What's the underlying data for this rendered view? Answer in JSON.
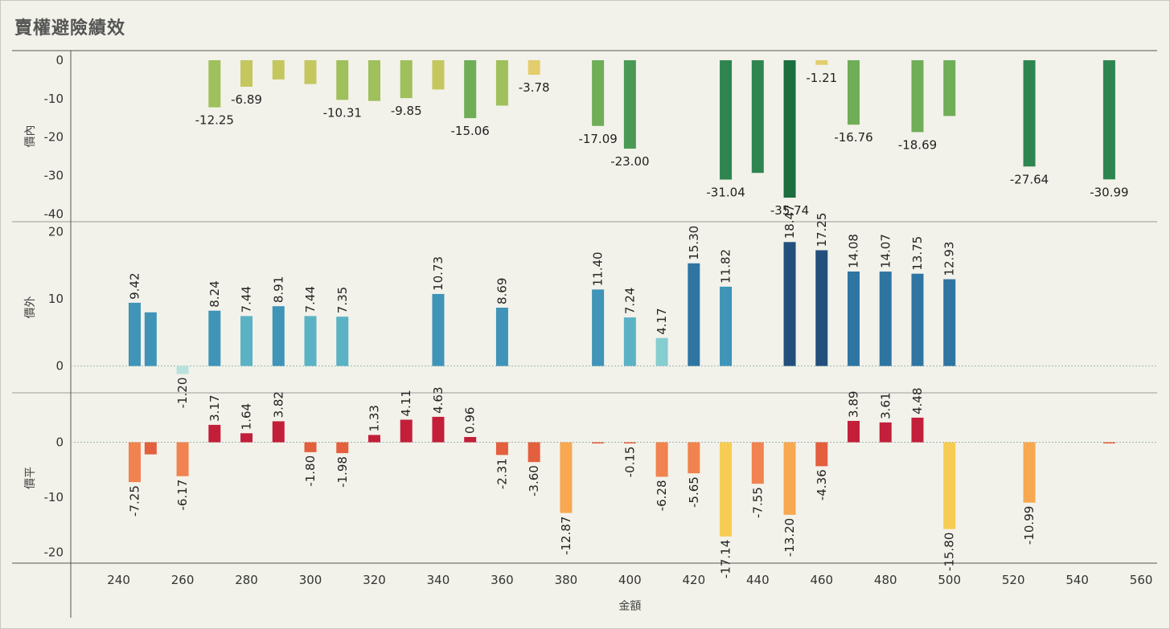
{
  "title": "賣權避險績效",
  "colors": {
    "greens": [
      "#e3cd6c",
      "#c4c75e",
      "#9fc05a",
      "#6fad57",
      "#4a9a55",
      "#2f8550",
      "#1c6e3e"
    ],
    "blues": [
      "#b8e2dd",
      "#86cdd0",
      "#5bb2c5",
      "#3f94b8",
      "#2f75a2",
      "#234f7c"
    ],
    "posred": "#c31f3a",
    "negs": [
      "#f6cc54",
      "#f7a851",
      "#f0834f",
      "#e35f3e"
    ]
  },
  "chart_data": {
    "type": "bar",
    "xlabel": "金額",
    "xlim": [
      225,
      565
    ],
    "xticks": [
      240,
      260,
      280,
      300,
      320,
      340,
      360,
      380,
      400,
      420,
      440,
      460,
      480,
      500,
      520,
      540,
      560
    ],
    "panels": [
      {
        "name": "價內",
        "ylim": [
          -42,
          2.5
        ],
        "yticks": [
          0,
          -10,
          -20,
          -30,
          -40
        ],
        "bars": [
          {
            "x": 270,
            "value": -12.25,
            "label": "-12.25"
          },
          {
            "x": 280,
            "value": -6.89,
            "label": "-6.89"
          },
          {
            "x": 290,
            "value": -5.0,
            "label": ""
          },
          {
            "x": 300,
            "value": -6.2,
            "label": ""
          },
          {
            "x": 310,
            "value": -10.31,
            "label": "-10.31"
          },
          {
            "x": 320,
            "value": -10.6,
            "label": ""
          },
          {
            "x": 330,
            "value": -9.85,
            "label": "-9.85"
          },
          {
            "x": 340,
            "value": -7.6,
            "label": ""
          },
          {
            "x": 350,
            "value": -15.06,
            "label": "-15.06"
          },
          {
            "x": 360,
            "value": -11.8,
            "label": ""
          },
          {
            "x": 370,
            "value": -3.78,
            "label": "-3.78"
          },
          {
            "x": 390,
            "value": -17.09,
            "label": "-17.09"
          },
          {
            "x": 400,
            "value": -23.0,
            "label": "-23.00"
          },
          {
            "x": 430,
            "value": -31.04,
            "label": "-31.04"
          },
          {
            "x": 440,
            "value": -29.3,
            "label": ""
          },
          {
            "x": 450,
            "value": -35.74,
            "label": "-35.74"
          },
          {
            "x": 460,
            "value": -1.21,
            "label": "-1.21"
          },
          {
            "x": 470,
            "value": -16.76,
            "label": "-16.76"
          },
          {
            "x": 490,
            "value": -18.69,
            "label": "-18.69"
          },
          {
            "x": 500,
            "value": -14.5,
            "label": ""
          },
          {
            "x": 525,
            "value": -27.64,
            "label": "-27.64"
          },
          {
            "x": 550,
            "value": -30.99,
            "label": "-30.99"
          }
        ]
      },
      {
        "name": "價外",
        "ylim": [
          -4,
          21.5
        ],
        "yticks": [
          20,
          10,
          0
        ],
        "bars": [
          {
            "x": 245,
            "value": 9.42,
            "label": "9.42"
          },
          {
            "x": 250,
            "value": 8.0,
            "label": ""
          },
          {
            "x": 260,
            "value": -1.2,
            "label": "-1.20"
          },
          {
            "x": 270,
            "value": 8.24,
            "label": "8.24"
          },
          {
            "x": 280,
            "value": 7.44,
            "label": "7.44"
          },
          {
            "x": 290,
            "value": 8.91,
            "label": "8.91"
          },
          {
            "x": 300,
            "value": 7.44,
            "label": "7.44"
          },
          {
            "x": 310,
            "value": 7.35,
            "label": "7.35"
          },
          {
            "x": 340,
            "value": 10.73,
            "label": "10.73"
          },
          {
            "x": 360,
            "value": 8.69,
            "label": "8.69"
          },
          {
            "x": 390,
            "value": 11.4,
            "label": "11.40"
          },
          {
            "x": 400,
            "value": 7.24,
            "label": "7.24"
          },
          {
            "x": 410,
            "value": 4.17,
            "label": "4.17"
          },
          {
            "x": 420,
            "value": 15.3,
            "label": "15.30"
          },
          {
            "x": 430,
            "value": 11.82,
            "label": "11.82"
          },
          {
            "x": 450,
            "value": 18.47,
            "label": "18.47"
          },
          {
            "x": 460,
            "value": 17.25,
            "label": "17.25"
          },
          {
            "x": 470,
            "value": 14.08,
            "label": "14.08"
          },
          {
            "x": 480,
            "value": 14.07,
            "label": "14.07"
          },
          {
            "x": 490,
            "value": 13.75,
            "label": "13.75"
          },
          {
            "x": 500,
            "value": 12.93,
            "label": "12.93"
          }
        ]
      },
      {
        "name": "價平",
        "ylim": [
          -22,
          9
        ],
        "yticks": [
          0,
          -10,
          -20
        ],
        "bars": [
          {
            "x": 245,
            "value": -7.25,
            "label": "-7.25"
          },
          {
            "x": 250,
            "value": -2.2,
            "label": ""
          },
          {
            "x": 260,
            "value": -6.17,
            "label": "-6.17"
          },
          {
            "x": 270,
            "value": 3.17,
            "label": "3.17"
          },
          {
            "x": 280,
            "value": 1.64,
            "label": "1.64"
          },
          {
            "x": 290,
            "value": 3.82,
            "label": "3.82"
          },
          {
            "x": 300,
            "value": -1.8,
            "label": "-1.80"
          },
          {
            "x": 310,
            "value": -1.98,
            "label": "-1.98"
          },
          {
            "x": 320,
            "value": 1.33,
            "label": "1.33"
          },
          {
            "x": 330,
            "value": 4.11,
            "label": "4.11"
          },
          {
            "x": 340,
            "value": 4.63,
            "label": "4.63"
          },
          {
            "x": 350,
            "value": 0.96,
            "label": "0.96"
          },
          {
            "x": 360,
            "value": -2.31,
            "label": "-2.31"
          },
          {
            "x": 370,
            "value": -3.6,
            "label": "-3.60"
          },
          {
            "x": 380,
            "value": -12.87,
            "label": "-12.87"
          },
          {
            "x": 390,
            "value": -0.2,
            "label": ""
          },
          {
            "x": 400,
            "value": -0.15,
            "label": "-0.15"
          },
          {
            "x": 410,
            "value": -6.28,
            "label": "-6.28"
          },
          {
            "x": 420,
            "value": -5.65,
            "label": "-5.65"
          },
          {
            "x": 430,
            "value": -17.14,
            "label": "-17.14"
          },
          {
            "x": 440,
            "value": -7.55,
            "label": "-7.55"
          },
          {
            "x": 450,
            "value": -13.2,
            "label": "-13.20"
          },
          {
            "x": 460,
            "value": -4.36,
            "label": "-4.36"
          },
          {
            "x": 470,
            "value": 3.89,
            "label": "3.89"
          },
          {
            "x": 480,
            "value": 3.61,
            "label": "3.61"
          },
          {
            "x": 490,
            "value": 4.48,
            "label": "4.48"
          },
          {
            "x": 500,
            "value": -15.8,
            "label": "-15.80"
          },
          {
            "x": 525,
            "value": -10.99,
            "label": "-10.99"
          },
          {
            "x": 550,
            "value": -0.2,
            "label": ""
          }
        ]
      }
    ]
  }
}
